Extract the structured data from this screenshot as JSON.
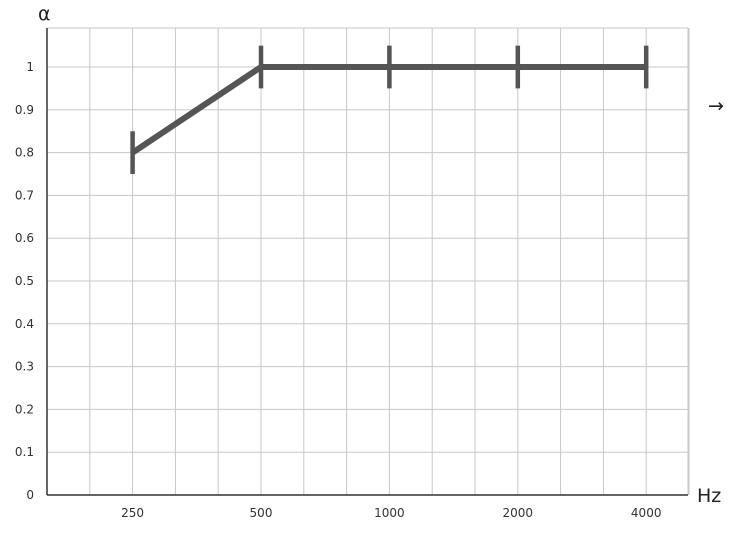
{
  "chart_data": {
    "type": "line",
    "title": "",
    "xlabel": "Hz",
    "ylabel": "α",
    "categories": [
      "250",
      "500",
      "1000",
      "2000",
      "4000"
    ],
    "values": [
      0.8,
      1.0,
      1.0,
      1.0,
      1.0
    ],
    "error_bar_halfwidth": 0.05,
    "ylim": [
      0,
      1.09
    ],
    "yticks": [
      "0",
      "0.1",
      "0.2",
      "0.3",
      "0.4",
      "0.5",
      "0.6",
      "0.7",
      "0.8",
      "0.9",
      "1"
    ],
    "grid": true,
    "line_color": "#555555",
    "grid_color": "#c8c8c8",
    "annotation": "→"
  }
}
